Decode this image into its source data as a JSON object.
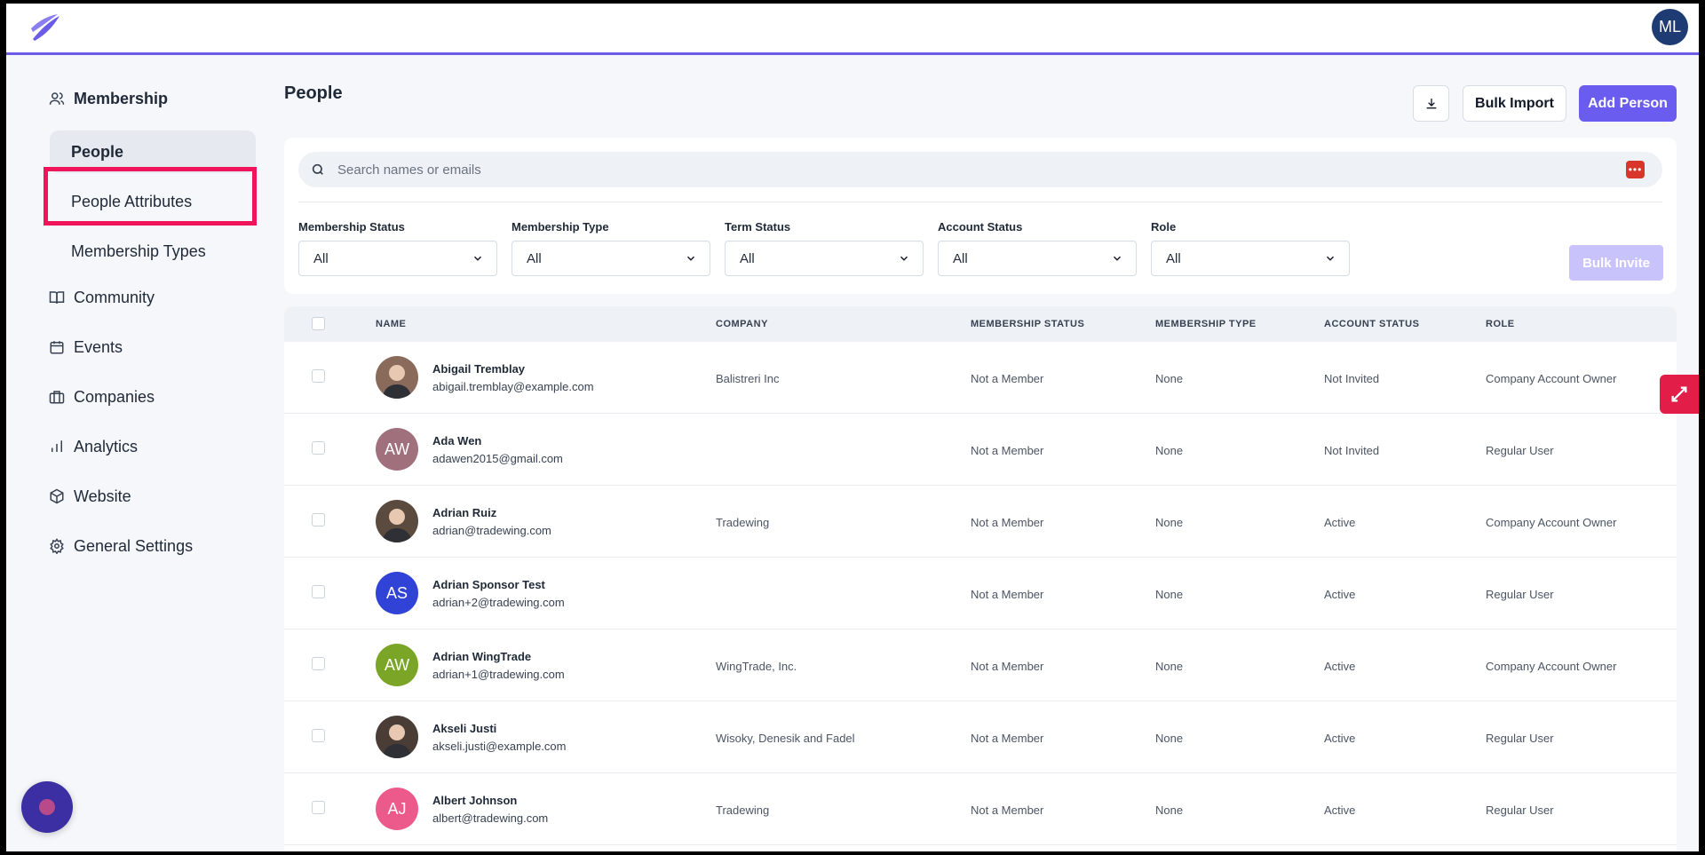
{
  "topbar": {
    "user_initials": "ML"
  },
  "sidebar": {
    "membership_label": "Membership",
    "sub_items": [
      {
        "label": "People"
      },
      {
        "label": "People Attributes"
      },
      {
        "label": "Membership Types"
      }
    ],
    "items": [
      {
        "label": "Community"
      },
      {
        "label": "Events"
      },
      {
        "label": "Companies"
      },
      {
        "label": "Analytics"
      },
      {
        "label": "Website"
      },
      {
        "label": "General Settings"
      }
    ]
  },
  "main": {
    "title": "People",
    "bulk_import_label": "Bulk Import",
    "add_person_label": "Add Person",
    "search_placeholder": "Search names or emails",
    "bulk_invite_label": "Bulk Invite",
    "filters": [
      {
        "label": "Membership Status",
        "value": "All"
      },
      {
        "label": "Membership Type",
        "value": "All"
      },
      {
        "label": "Term Status",
        "value": "All"
      },
      {
        "label": "Account Status",
        "value": "All"
      },
      {
        "label": "Role",
        "value": "All"
      }
    ]
  },
  "table": {
    "headers": [
      "NAME",
      "COMPANY",
      "MEMBERSHIP STATUS",
      "MEMBERSHIP TYPE",
      "ACCOUNT STATUS",
      "ROLE"
    ],
    "rows": [
      {
        "name": "Abigail Tremblay",
        "email": "abigail.tremblay@example.com",
        "initials": "",
        "avatar_color": "#8a6a5a",
        "company": "Balistreri Inc",
        "membership_status": "Not a Member",
        "membership_type": "None",
        "account_status": "Not Invited",
        "role": "Company Account Owner"
      },
      {
        "name": "Ada Wen",
        "email": "adawen2015@gmail.com",
        "initials": "AW",
        "avatar_color": "#a0707c",
        "company": "",
        "membership_status": "Not a Member",
        "membership_type": "None",
        "account_status": "Not Invited",
        "role": "Regular User"
      },
      {
        "name": "Adrian Ruiz",
        "email": "adrian@tradewing.com",
        "initials": "",
        "avatar_color": "#5b4a3e",
        "company": "Tradewing",
        "membership_status": "Not a Member",
        "membership_type": "None",
        "account_status": "Active",
        "role": "Company Account Owner"
      },
      {
        "name": "Adrian Sponsor Test",
        "email": "adrian+2@tradewing.com",
        "initials": "AS",
        "avatar_color": "#3143d6",
        "company": "",
        "membership_status": "Not a Member",
        "membership_type": "None",
        "account_status": "Active",
        "role": "Regular User"
      },
      {
        "name": "Adrian WingTrade",
        "email": "adrian+1@tradewing.com",
        "initials": "AW",
        "avatar_color": "#7aa526",
        "company": "WingTrade, Inc.",
        "membership_status": "Not a Member",
        "membership_type": "None",
        "account_status": "Active",
        "role": "Company Account Owner"
      },
      {
        "name": "Akseli Justi",
        "email": "akseli.justi@example.com",
        "initials": "",
        "avatar_color": "#4a3d36",
        "company": "Wisoky, Denesik and Fadel",
        "membership_status": "Not a Member",
        "membership_type": "None",
        "account_status": "Active",
        "role": "Regular User"
      },
      {
        "name": "Albert Johnson",
        "email": "albert@tradewing.com",
        "initials": "AJ",
        "avatar_color": "#ec5a8c",
        "company": "Tradewing",
        "membership_status": "Not a Member",
        "membership_type": "None",
        "account_status": "Active",
        "role": "Regular User"
      }
    ]
  },
  "colors": {
    "accent": "#6b5cf0",
    "highlight": "#f0145a"
  }
}
